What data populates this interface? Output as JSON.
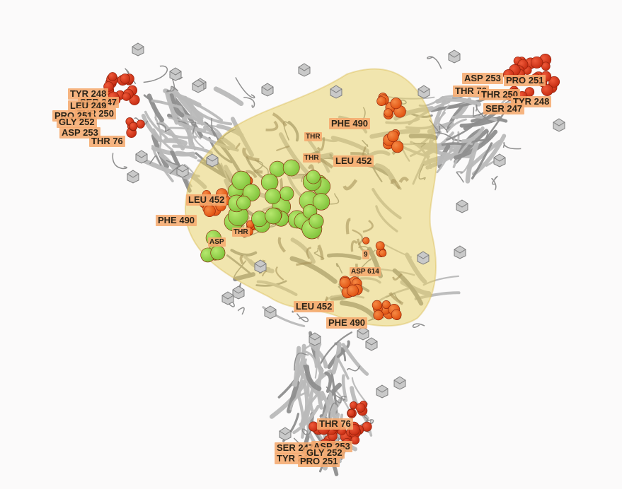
{
  "viewer": {
    "background": "#fbfafa",
    "colors": {
      "ribbon": "#b9b9b9",
      "ribbon_dark": "#8e8e8e",
      "surface": "#e8cf62",
      "surface_edge": "#d9b84a",
      "sphere_red": "#c42a10",
      "sphere_orange": "#e0500f",
      "sphere_green": "#7fc23a",
      "label_bg": "#f5aa6e"
    },
    "icons": {
      "glycan": "cube-icon",
      "ligand": "sphere-cluster-icon"
    }
  },
  "labels": {
    "tyr248_a": "TYR 248",
    "ser247_a": "SER 247",
    "leu249_a": "LEU 249",
    "thr250_a": "THR 250",
    "pro251_a": "PRO 251",
    "gly252_a": "GLY 252",
    "asp253_a": "ASP 253",
    "thr76_a": "THR 76",
    "asp253_b": "ASP 253",
    "pro251_b": "PRO 251",
    "thr76_b": "THR 76",
    "thr250_b": "THR 250",
    "tyr248_b": "TYR 248",
    "ser247_b": "SER 247",
    "phe490_a": "PHE 490",
    "leu452_a": "LEU 452",
    "thr_small_a": "THR",
    "thr_small_b": "THR",
    "leu452_b": "LEU 452",
    "phe490_b": "PHE 490",
    "thr_small_c": "THR",
    "asp_small_a": "ASP",
    "res_small_c": "9",
    "asp614": "ASP 614",
    "leu452_c": "LEU 452",
    "phe490_c": "PHE 490",
    "thr76_c": "THR 76",
    "ser247_c": "SER 247",
    "asp253_c": "ASP 253",
    "tyr248_c": "TYR 248",
    "gly252_c": "GLY 252",
    "pro251_c": "PRO 251"
  }
}
